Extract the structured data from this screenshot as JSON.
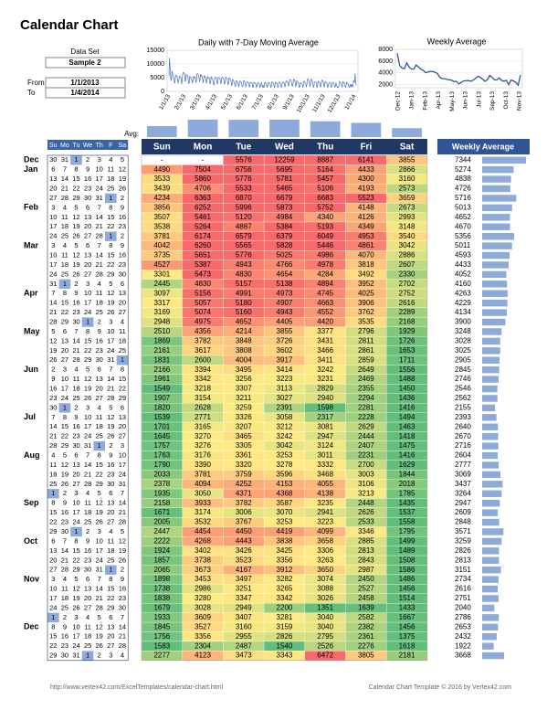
{
  "title": "Calendar Chart",
  "inputs": {
    "data_set_label": "Data Set",
    "data_set": "Sample 2",
    "from_label": "From",
    "from": "1/1/2013",
    "to_label": "To",
    "to": "1/4/2014"
  },
  "daily_chart": {
    "title": "Daily with 7-Day Moving Average",
    "ylim": [
      0,
      15000
    ],
    "yticks": [
      0,
      5000,
      10000,
      15000
    ],
    "x_labels": [
      "1/1/13",
      "2/1/13",
      "3/1/13",
      "4/1/13",
      "5/1/13",
      "6/1/13",
      "7/1/13",
      "8/1/13",
      "9/1/13",
      "10/1/13",
      "11/1/13",
      "12/1/13",
      "1/1/14"
    ],
    "color": "#4472c4"
  },
  "weekly_chart": {
    "title": "Weekly Average",
    "ylim": [
      1500,
      8000
    ],
    "yticks": [
      2000,
      4000,
      6000,
      8000
    ],
    "x_labels": [
      "Dec-12",
      "Jan-13",
      "Feb-13",
      "Apr-13",
      "May-13",
      "Jun-13",
      "Jul-13",
      "Sep-13",
      "Oct-13",
      "Nov-13"
    ],
    "color": "#2f5597"
  },
  "avg_bars": {
    "label": "Avg:",
    "values": [
      2700,
      4300,
      4250,
      4300,
      3900,
      3500,
      2200
    ],
    "ylim": [
      0,
      4500
    ],
    "color": "#8eaadb"
  },
  "calendar": {
    "headers": [
      "Su",
      "Mo",
      "Tu",
      "We",
      "Th",
      "F",
      "Sa"
    ]
  },
  "table": {
    "headers": [
      "Sun",
      "Mon",
      "Tue",
      "Wed",
      "Thu",
      "Fri",
      "Sat"
    ],
    "average_header": "Weekly Average",
    "weeks": [
      {
        "month": "Dec",
        "days": [
          30,
          31,
          1,
          2,
          3,
          4,
          5
        ],
        "values": [
          "-",
          "-",
          5576,
          12259,
          8887,
          6141,
          3855
        ],
        "average": 7344
      },
      {
        "month": "Jan",
        "days": [
          6,
          7,
          8,
          9,
          10,
          11,
          12
        ],
        "values": [
          4490,
          7504,
          6756,
          5695,
          5164,
          4433,
          2866
        ],
        "average": 5274
      },
      {
        "days": [
          13,
          14,
          15,
          16,
          17,
          18,
          19
        ],
        "values": [
          3533,
          5860,
          5776,
          5781,
          5457,
          4300,
          3160
        ],
        "average": 4838
      },
      {
        "days": [
          20,
          21,
          22,
          23,
          24,
          25,
          26
        ],
        "values": [
          3439,
          4706,
          5533,
          5465,
          5106,
          4193,
          2573
        ],
        "average": 4726
      },
      {
        "days": [
          27,
          28,
          29,
          30,
          31,
          1,
          2
        ],
        "values": [
          4234,
          6363,
          6870,
          6679,
          6683,
          5523,
          3659
        ],
        "average": 5716
      },
      {
        "month": "Feb",
        "days": [
          3,
          4,
          5,
          6,
          7,
          8,
          9
        ],
        "values": [
          3856,
          6252,
          5996,
          5873,
          5752,
          4148,
          2673
        ],
        "average": 5013
      },
      {
        "days": [
          10,
          11,
          12,
          13,
          14,
          15,
          16
        ],
        "values": [
          3507,
          5461,
          5120,
          4984,
          4340,
          4126,
          2993
        ],
        "average": 4652
      },
      {
        "days": [
          17,
          18,
          19,
          20,
          21,
          22,
          23
        ],
        "values": [
          3538,
          5264,
          4887,
          5384,
          5193,
          4349,
          3148
        ],
        "average": 4670
      },
      {
        "days": [
          24,
          25,
          26,
          27,
          28,
          1,
          2
        ],
        "values": [
          3781,
          6174,
          6579,
          6379,
          6049,
          4953,
          3540
        ],
        "average": 5356
      },
      {
        "month": "Mar",
        "days": [
          3,
          4,
          5,
          6,
          7,
          8,
          9
        ],
        "values": [
          4042,
          6260,
          5565,
          5828,
          5446,
          4861,
          3042
        ],
        "average": 5011
      },
      {
        "days": [
          10,
          11,
          12,
          13,
          14,
          15,
          16
        ],
        "values": [
          3735,
          5651,
          5776,
          5025,
          4986,
          4070,
          2886
        ],
        "average": 4593
      },
      {
        "days": [
          17,
          18,
          19,
          20,
          21,
          22,
          23
        ],
        "values": [
          4527,
          5387,
          4943,
          4766,
          4978,
          3818,
          2607
        ],
        "average": 4433
      },
      {
        "days": [
          24,
          25,
          26,
          27,
          28,
          29,
          30
        ],
        "values": [
          3301,
          5473,
          4830,
          4654,
          4284,
          3492,
          2330
        ],
        "average": 4052
      },
      {
        "days": [
          31,
          1,
          2,
          3,
          4,
          5,
          6
        ],
        "values": [
          2445,
          4830,
          5157,
          5138,
          4894,
          3952,
          2702
        ],
        "average": 4160
      },
      {
        "month": "Apr",
        "days": [
          7,
          8,
          9,
          10,
          11,
          12,
          13
        ],
        "values": [
          3097,
          5156,
          4991,
          4973,
          4745,
          4025,
          2752
        ],
        "average": 4263
      },
      {
        "days": [
          14,
          15,
          16,
          17,
          18,
          19,
          20
        ],
        "values": [
          3317,
          5057,
          5180,
          4907,
          4663,
          3906,
          2616
        ],
        "average": 4229
      },
      {
        "days": [
          21,
          22,
          23,
          24,
          25,
          26,
          27
        ],
        "values": [
          3169,
          5074,
          5160,
          4943,
          4552,
          3762,
          2289
        ],
        "average": 4134
      },
      {
        "days": [
          28,
          29,
          30,
          1,
          2,
          3,
          4
        ],
        "values": [
          2948,
          4975,
          4652,
          4405,
          4420,
          3535,
          2168
        ],
        "average": 3900
      },
      {
        "month": "May",
        "days": [
          5,
          6,
          7,
          8,
          9,
          10,
          11
        ],
        "values": [
          2510,
          4356,
          4214,
          3855,
          3377,
          2796,
          1929
        ],
        "average": 3248
      },
      {
        "days": [
          12,
          13,
          14,
          15,
          16,
          17,
          18
        ],
        "values": [
          1869,
          3782,
          3848,
          3726,
          3431,
          2811,
          1726
        ],
        "average": 3028
      },
      {
        "days": [
          19,
          20,
          21,
          22,
          23,
          24,
          25
        ],
        "values": [
          2161,
          3617,
          3808,
          3602,
          3466,
          2861,
          1653
        ],
        "average": 3025
      },
      {
        "days": [
          26,
          27,
          28,
          29,
          30,
          31,
          1
        ],
        "values": [
          1831,
          2600,
          4004,
          3917,
          3411,
          2859,
          1711
        ],
        "average": 2905
      },
      {
        "month": "Jun",
        "days": [
          2,
          3,
          4,
          5,
          6,
          7,
          8
        ],
        "values": [
          2166,
          3394,
          3495,
          3414,
          3242,
          2649,
          1556
        ],
        "average": 2845
      },
      {
        "days": [
          9,
          10,
          11,
          12,
          13,
          14,
          15
        ],
        "values": [
          1961,
          3342,
          3256,
          3223,
          3231,
          2469,
          1488
        ],
        "average": 2746
      },
      {
        "days": [
          16,
          17,
          18,
          19,
          20,
          21,
          22
        ],
        "values": [
          1549,
          3218,
          3307,
          3113,
          2829,
          2355,
          1450
        ],
        "average": 2546
      },
      {
        "days": [
          23,
          24,
          25,
          26,
          27,
          28,
          29
        ],
        "values": [
          1907,
          3154,
          3211,
          3027,
          2940,
          2294,
          1436
        ],
        "average": 2562
      },
      {
        "days": [
          30,
          1,
          2,
          3,
          4,
          5,
          6
        ],
        "values": [
          1820,
          2628,
          3259,
          2391,
          1598,
          2281,
          1416
        ],
        "average": 2155
      },
      {
        "month": "Jul",
        "days": [
          7,
          8,
          9,
          10,
          11,
          12,
          13
        ],
        "values": [
          1539,
          2771,
          3326,
          3058,
          2317,
          2228,
          1494
        ],
        "average": 2393
      },
      {
        "days": [
          14,
          15,
          16,
          17,
          18,
          19,
          20
        ],
        "values": [
          1701,
          3165,
          3207,
          3212,
          3081,
          2629,
          1463
        ],
        "average": 2640
      },
      {
        "days": [
          21,
          22,
          23,
          24,
          25,
          26,
          27
        ],
        "values": [
          1645,
          3270,
          3465,
          3242,
          2947,
          2444,
          1418
        ],
        "average": 2670
      },
      {
        "days": [
          28,
          29,
          30,
          31,
          1,
          2,
          3
        ],
        "values": [
          1757,
          3276,
          3305,
          3042,
          3124,
          2407,
          1475
        ],
        "average": 2716
      },
      {
        "month": "Aug",
        "days": [
          4,
          5,
          6,
          7,
          8,
          9,
          10
        ],
        "values": [
          1763,
          3176,
          3361,
          3253,
          3011,
          2231,
          1416
        ],
        "average": 2604
      },
      {
        "days": [
          11,
          12,
          13,
          14,
          15,
          16,
          17
        ],
        "values": [
          1790,
          3390,
          3320,
          3278,
          3332,
          2700,
          1629
        ],
        "average": 2777
      },
      {
        "days": [
          18,
          19,
          20,
          21,
          22,
          23,
          24
        ],
        "values": [
          2033,
          3781,
          3759,
          3596,
          3468,
          3003,
          1844
        ],
        "average": 3069
      },
      {
        "days": [
          25,
          26,
          27,
          28,
          29,
          30,
          31
        ],
        "values": [
          2378,
          4094,
          4252,
          4153,
          4055,
          3106,
          2018
        ],
        "average": 3437
      },
      {
        "days": [
          1,
          2,
          3,
          4,
          5,
          6,
          7
        ],
        "values": [
          1935,
          3050,
          4371,
          4368,
          4138,
          3213,
          1785
        ],
        "average": 3264
      },
      {
        "month": "Sep",
        "days": [
          8,
          9,
          10,
          11,
          12,
          13,
          14
        ],
        "values": [
          2158,
          3933,
          3782,
          3587,
          3235,
          2448,
          1435
        ],
        "average": 2947
      },
      {
        "days": [
          15,
          16,
          17,
          18,
          19,
          20,
          21
        ],
        "values": [
          1671,
          3174,
          3006,
          3070,
          2941,
          2626,
          1537
        ],
        "average": 2609
      },
      {
        "days": [
          22,
          23,
          24,
          25,
          26,
          27,
          28
        ],
        "values": [
          2005,
          3532,
          3767,
          3253,
          3223,
          2533,
          1558
        ],
        "average": 2848
      },
      {
        "days": [
          29,
          30,
          1,
          2,
          3,
          4,
          5
        ],
        "values": [
          2447,
          4454,
          4450,
          4419,
          4099,
          3346,
          1795
        ],
        "average": 3571
      },
      {
        "month": "Oct",
        "days": [
          6,
          7,
          8,
          9,
          10,
          11,
          12
        ],
        "values": [
          2222,
          4268,
          4443,
          3838,
          3658,
          2885,
          1499
        ],
        "average": 3259
      },
      {
        "days": [
          13,
          14,
          15,
          16,
          17,
          18,
          19
        ],
        "values": [
          1924,
          3402,
          3426,
          3425,
          3306,
          2813,
          1489
        ],
        "average": 2826
      },
      {
        "days": [
          20,
          21,
          22,
          23,
          24,
          25,
          26
        ],
        "values": [
          1857,
          3738,
          3523,
          3356,
          3263,
          2843,
          1508
        ],
        "average": 2813
      },
      {
        "days": [
          27,
          28,
          29,
          30,
          31,
          1,
          2
        ],
        "values": [
          2065,
          3673,
          4167,
          3912,
          3650,
          2987,
          1586
        ],
        "average": 3151
      },
      {
        "month": "Nov",
        "days": [
          3,
          4,
          5,
          6,
          7,
          8,
          9
        ],
        "values": [
          1898,
          3453,
          3497,
          3282,
          3074,
          2450,
          1486
        ],
        "average": 2734
      },
      {
        "days": [
          10,
          11,
          12,
          13,
          14,
          15,
          16
        ],
        "values": [
          1738,
          2986,
          3251,
          3265,
          3088,
          2527,
          1456
        ],
        "average": 2616
      },
      {
        "days": [
          17,
          18,
          19,
          20,
          21,
          22,
          23
        ],
        "values": [
          1838,
          3280,
          3347,
          3342,
          3026,
          2458,
          1514
        ],
        "average": 2751
      },
      {
        "days": [
          24,
          25,
          26,
          27,
          28,
          29,
          30
        ],
        "values": [
          1679,
          3028,
          2949,
          2200,
          1351,
          1639,
          1433
        ],
        "average": 2040
      },
      {
        "days": [
          1,
          2,
          3,
          4,
          5,
          6,
          7
        ],
        "values": [
          1933,
          3609,
          3407,
          3281,
          3040,
          2582,
          1667
        ],
        "average": 2786
      },
      {
        "month": "Dec",
        "days": [
          8,
          9,
          10,
          11,
          12,
          13,
          14
        ],
        "values": [
          1845,
          3527,
          3160,
          3159,
          3040,
          2382,
          1456
        ],
        "average": 2653
      },
      {
        "days": [
          15,
          16,
          17,
          18,
          19,
          20,
          21
        ],
        "values": [
          1756,
          3356,
          2955,
          2826,
          2795,
          2361,
          1375
        ],
        "average": 2432
      },
      {
        "days": [
          22,
          23,
          24,
          25,
          26,
          27,
          28
        ],
        "values": [
          1583,
          2304,
          2487,
          1540,
          2526,
          2276,
          1618
        ],
        "average": 1922
      },
      {
        "days": [
          29,
          30,
          31,
          1,
          2,
          3,
          4
        ],
        "values": [
          2277,
          4123,
          3473,
          3343,
          6472,
          3805,
          2181
        ],
        "average": 3668
      }
    ]
  },
  "footer": {
    "url": "http://www.vertex42.com/ExcelTemplates/calendar-chart.html",
    "credit": "Calendar Chart Template © 2016 by Vertex42.com"
  }
}
